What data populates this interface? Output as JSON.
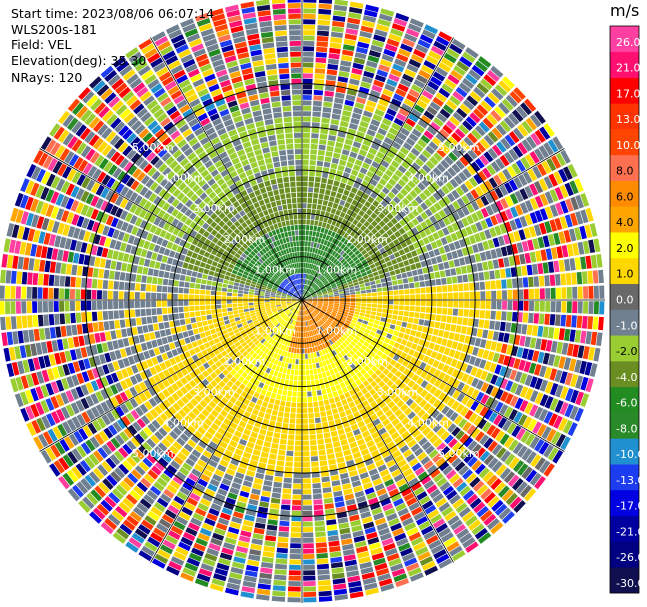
{
  "header": {
    "start_time": "Start time: 2023/08/06 06:07:14",
    "instrument": "WLS200s-181",
    "field": "Field: VEL",
    "elevation": "Elevation(deg): 35.30",
    "nrays": "NRays: 120"
  },
  "chart_data": {
    "type": "heatmap",
    "projection": "polar-ppi",
    "n_rays": 120,
    "max_range_km": 7.0,
    "range_rings_km": [
      1,
      2,
      3,
      4,
      5
    ],
    "ring_labels": [
      "1.00km",
      "2.00km",
      "3.00km",
      "4.00km",
      "5.00km"
    ],
    "spokes_deg": [
      0,
      30,
      60,
      90,
      120,
      150,
      180,
      210,
      240,
      270,
      300,
      330
    ],
    "colorbar": {
      "unit": "m/s",
      "bounds": [
        -30.0,
        -26.0,
        -21.0,
        -17.0,
        -13.0,
        -10.0,
        -8.0,
        -6.0,
        -4.0,
        -2.0,
        -1.0,
        0.0,
        1.0,
        2.0,
        4.0,
        6.0,
        8.0,
        10.0,
        13.0,
        17.0,
        21.0,
        26.0,
        30.0
      ],
      "tick_labels": [
        "-30.0",
        "-26.0",
        "-21.0",
        "-17.0",
        "-13.0",
        "-10.0",
        "-8.0",
        "-6.0",
        "-4.0",
        "-2.0",
        "-1.0",
        "0.0",
        "1.0",
        "2.0",
        "4.0",
        "6.0",
        "8.0",
        "10.0",
        "13.0",
        "17.0",
        "21.0",
        "26.0"
      ],
      "colors": [
        "#101050",
        "#000080",
        "#0000a0",
        "#0000e0",
        "#1c3cf0",
        "#2090d0",
        "#2a8a2a",
        "#228b22",
        "#6b8e23",
        "#9acd32",
        "#708090",
        "#696969",
        "#ffd700",
        "#ffff00",
        "#ffa500",
        "#ff8c00",
        "#ff7050",
        "#ff4500",
        "#ff3300",
        "#ff0000",
        "#ff1070",
        "#ff40a0"
      ]
    },
    "field_regions": [
      {
        "range_km": [
          0.0,
          0.6
        ],
        "sector": "north-west",
        "value": -12.0
      },
      {
        "range_km": [
          0.6,
          1.6
        ],
        "sector": "north",
        "value": -6.5
      },
      {
        "range_km": [
          1.6,
          2.8
        ],
        "sector": "north",
        "value": -3.0
      },
      {
        "range_km": [
          2.8,
          4.5
        ],
        "sector": "north",
        "value": -1.5
      },
      {
        "range_km": [
          0.0,
          1.2
        ],
        "sector": "south-east",
        "value": 7.0
      },
      {
        "range_km": [
          1.2,
          2.4
        ],
        "sector": "south",
        "value": 3.0
      },
      {
        "range_km": [
          2.4,
          4.5
        ],
        "sector": "south",
        "value": 1.5
      },
      {
        "range_km": [
          0.0,
          4.5
        ],
        "sector": "west/east",
        "value": 1.2
      },
      {
        "range_km": [
          4.5,
          7.0
        ],
        "sector": "all",
        "value": "noise"
      }
    ],
    "xlabel": "",
    "ylabel": ""
  }
}
